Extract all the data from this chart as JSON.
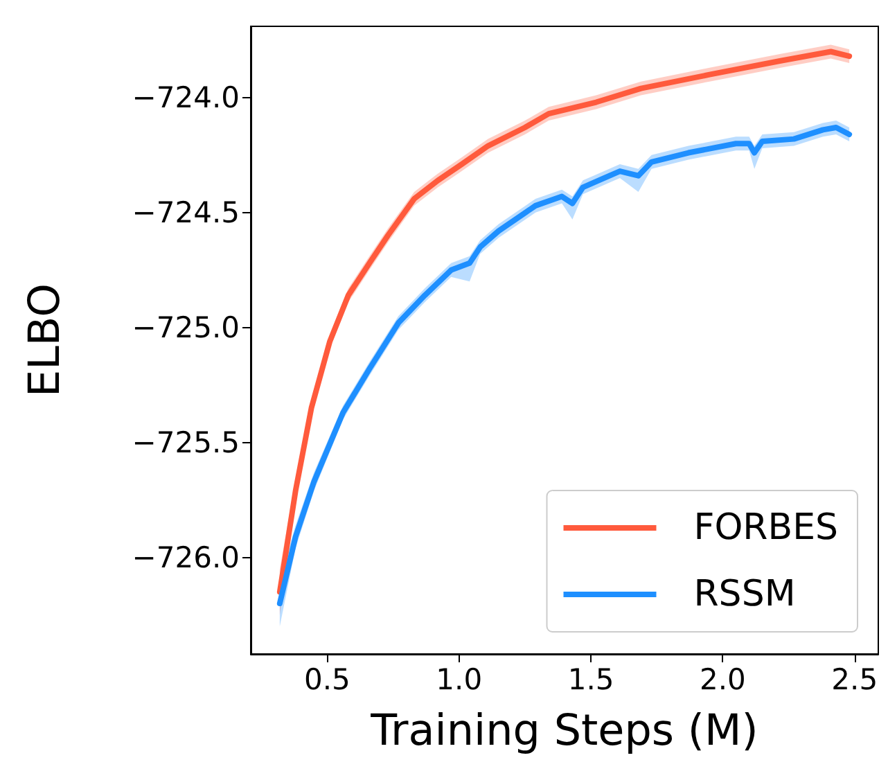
{
  "chart_data": {
    "type": "line",
    "xlabel": "Training Steps (M)",
    "ylabel": "ELBO",
    "xlim": [
      0.21,
      2.59
    ],
    "xticks": [
      {
        "value": 0.5,
        "label": "0.5"
      },
      {
        "value": 1,
        "label": "1.0"
      },
      {
        "value": 1.5,
        "label": "1.5"
      },
      {
        "value": 2,
        "label": "2.0"
      },
      {
        "value": 2.5,
        "label": "2.5"
      }
    ],
    "ylim": [
      -726.42,
      -723.69
    ],
    "yticks": [
      {
        "value": -726,
        "label": "−726.0"
      },
      {
        "value": -725.5,
        "label": "−725.5"
      },
      {
        "value": -725,
        "label": "−725.0"
      },
      {
        "value": -724.5,
        "label": "−724.5"
      },
      {
        "value": -724,
        "label": "−724.0"
      }
    ],
    "grid": false,
    "legend": "bottom right",
    "marker": "none",
    "line_style": "solid",
    "series": [
      {
        "name": "FORBES",
        "color": "#ff5a3c",
        "x": [
          0.32,
          0.38,
          0.44,
          0.51,
          0.58,
          0.66,
          0.73,
          0.83,
          0.92,
          1.01,
          1.11,
          1.25,
          1.34,
          1.52,
          1.69,
          1.95,
          2.22,
          2.41,
          2.48
        ],
        "values": [
          -726.15,
          -725.71,
          -725.35,
          -725.06,
          -724.86,
          -724.72,
          -724.6,
          -724.44,
          -724.36,
          -724.29,
          -724.21,
          -724.13,
          -724.07,
          -724.02,
          -723.96,
          -723.9,
          -723.84,
          -723.8,
          -723.82
        ],
        "lower": [
          -726.25,
          -725.76,
          -725.39,
          -725.09,
          -724.89,
          -724.75,
          -724.63,
          -724.47,
          -724.39,
          -724.32,
          -724.24,
          -724.16,
          -724.1,
          -724.05,
          -723.99,
          -723.93,
          -723.87,
          -723.83,
          -723.85
        ],
        "upper": [
          -726.05,
          -725.66,
          -725.31,
          -725.03,
          -724.83,
          -724.69,
          -724.57,
          -724.41,
          -724.33,
          -724.26,
          -724.18,
          -724.1,
          -724.04,
          -723.99,
          -723.93,
          -723.87,
          -723.81,
          -723.77,
          -723.79
        ]
      },
      {
        "name": "RSSM",
        "color": "#1e8fff",
        "x": [
          0.32,
          0.38,
          0.45,
          0.56,
          0.66,
          0.77,
          0.87,
          0.97,
          1.04,
          1.08,
          1.15,
          1.29,
          1.39,
          1.43,
          1.47,
          1.61,
          1.68,
          1.73,
          1.87,
          2.05,
          2.1,
          2.12,
          2.15,
          2.27,
          2.38,
          2.43,
          2.48
        ],
        "values": [
          -726.2,
          -725.91,
          -725.67,
          -725.37,
          -725.18,
          -724.98,
          -724.86,
          -724.75,
          -724.72,
          -724.65,
          -724.58,
          -724.47,
          -724.43,
          -724.46,
          -724.39,
          -724.32,
          -724.34,
          -724.28,
          -724.24,
          -724.2,
          -724.2,
          -724.24,
          -724.19,
          -724.18,
          -724.14,
          -724.13,
          -724.16
        ],
        "lower": [
          -726.3,
          -725.96,
          -725.71,
          -725.4,
          -725.21,
          -725.01,
          -724.89,
          -724.78,
          -724.8,
          -724.68,
          -724.61,
          -724.5,
          -724.46,
          -724.53,
          -724.42,
          -724.35,
          -724.41,
          -724.31,
          -724.27,
          -724.23,
          -724.23,
          -724.31,
          -724.22,
          -724.21,
          -724.17,
          -724.16,
          -724.19
        ],
        "upper": [
          -726.1,
          -725.86,
          -725.63,
          -725.34,
          -725.15,
          -724.95,
          -724.83,
          -724.72,
          -724.69,
          -724.62,
          -724.55,
          -724.44,
          -724.4,
          -724.43,
          -724.36,
          -724.29,
          -724.31,
          -724.25,
          -724.21,
          -724.17,
          -724.17,
          -724.21,
          -724.16,
          -724.15,
          -724.11,
          -724.1,
          -724.13
        ]
      }
    ]
  }
}
